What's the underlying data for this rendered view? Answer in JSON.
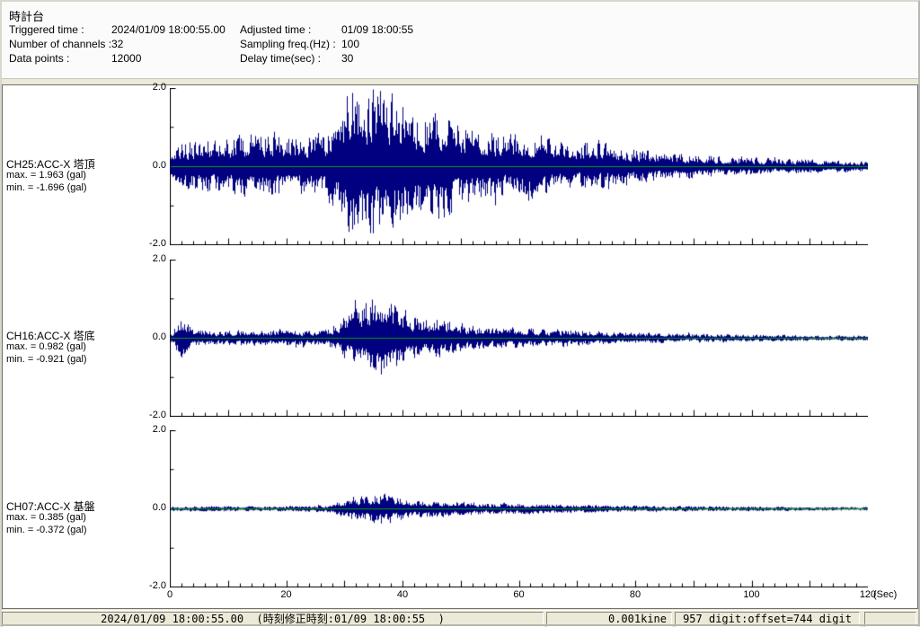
{
  "window": {
    "title": "時計台"
  },
  "header": {
    "fields": [
      {
        "label": "Triggered time :",
        "value": "2024/01/09 18:00:55.00"
      },
      {
        "label": "Adjusted time :",
        "value": "01/09 18:00:55"
      },
      {
        "label": "Number of channels :",
        "value": "32"
      },
      {
        "label": "Sampling freq.(Hz) :",
        "value": "100"
      },
      {
        "label": "Data points :",
        "value": "12000"
      },
      {
        "label": "Delay time(sec) :",
        "value": "30"
      }
    ]
  },
  "chart_data": {
    "type": "line",
    "title": "",
    "xlabel": "(Sec)",
    "ylabel": "(gal)",
    "x_range": [
      0,
      120
    ],
    "x_major_ticks": [
      0,
      20,
      40,
      60,
      80,
      100,
      120
    ],
    "x_major_labels": [
      "0",
      "20",
      "40",
      "60",
      "80",
      "100",
      "120"
    ],
    "x_minor_step": 2,
    "ylim": [
      -2.0,
      2.0
    ],
    "ytick_labels": [
      "2.0",
      "0.0",
      "-2.0"
    ],
    "grid": false,
    "trace_color": "#000080",
    "zero_line_color": "#0a9a0a",
    "axis_color": "#000000",
    "channels": [
      {
        "label": "CH25:ACC-X 塔頂",
        "max_label": "max. = 1.963 (gal)",
        "min_label": "min. = -1.696 (gal)",
        "max": 1.963,
        "min": -1.696,
        "seed": 1325,
        "envelope": [
          [
            0,
            0.25
          ],
          [
            1,
            0.45
          ],
          [
            3,
            0.55
          ],
          [
            6,
            0.6
          ],
          [
            10,
            0.65
          ],
          [
            14,
            0.7
          ],
          [
            18,
            0.72
          ],
          [
            22,
            0.65
          ],
          [
            26,
            0.7
          ],
          [
            29,
            1.0
          ],
          [
            31,
            1.9
          ],
          [
            33,
            1.55
          ],
          [
            35,
            1.85
          ],
          [
            37,
            1.6
          ],
          [
            40,
            1.3
          ],
          [
            43,
            1.1
          ],
          [
            46,
            1.35
          ],
          [
            48,
            1.2
          ],
          [
            50,
            1.0
          ],
          [
            53,
            0.9
          ],
          [
            56,
            0.75
          ],
          [
            60,
            0.65
          ],
          [
            63,
            0.8
          ],
          [
            66,
            0.55
          ],
          [
            70,
            0.5
          ],
          [
            73,
            0.6
          ],
          [
            76,
            0.45
          ],
          [
            80,
            0.38
          ],
          [
            85,
            0.3
          ],
          [
            90,
            0.28
          ],
          [
            95,
            0.22
          ],
          [
            100,
            0.2
          ],
          [
            105,
            0.17
          ],
          [
            110,
            0.16
          ],
          [
            115,
            0.13
          ],
          [
            120,
            0.12
          ]
        ]
      },
      {
        "label": "CH16:ACC-X 塔底",
        "max_label": "max. = 0.982 (gal)",
        "min_label": "min. = -0.921 (gal)",
        "max": 0.982,
        "min": -0.921,
        "seed": 7716,
        "envelope": [
          [
            0,
            0.1
          ],
          [
            1.5,
            0.45
          ],
          [
            2.5,
            0.5
          ],
          [
            4,
            0.2
          ],
          [
            8,
            0.17
          ],
          [
            12,
            0.2
          ],
          [
            16,
            0.18
          ],
          [
            20,
            0.2
          ],
          [
            24,
            0.18
          ],
          [
            27,
            0.2
          ],
          [
            29,
            0.45
          ],
          [
            31,
            0.6
          ],
          [
            33,
            0.75
          ],
          [
            35,
            0.95
          ],
          [
            37,
            1.0
          ],
          [
            39,
            0.8
          ],
          [
            41,
            0.6
          ],
          [
            44,
            0.45
          ],
          [
            47,
            0.5
          ],
          [
            50,
            0.35
          ],
          [
            53,
            0.3
          ],
          [
            56,
            0.25
          ],
          [
            60,
            0.28
          ],
          [
            64,
            0.2
          ],
          [
            68,
            0.22
          ],
          [
            72,
            0.18
          ],
          [
            76,
            0.15
          ],
          [
            80,
            0.13
          ],
          [
            85,
            0.12
          ],
          [
            90,
            0.1
          ],
          [
            95,
            0.1
          ],
          [
            100,
            0.08
          ],
          [
            105,
            0.08
          ],
          [
            110,
            0.07
          ],
          [
            115,
            0.07
          ],
          [
            120,
            0.06
          ]
        ]
      },
      {
        "label": "CH07:ACC-X 基盤",
        "max_label": "max. = 0.385 (gal)",
        "min_label": "min. = -0.372 (gal)",
        "max": 0.385,
        "min": -0.372,
        "seed": 4207,
        "envelope": [
          [
            0,
            0.05
          ],
          [
            5,
            0.06
          ],
          [
            10,
            0.06
          ],
          [
            15,
            0.05
          ],
          [
            20,
            0.06
          ],
          [
            25,
            0.07
          ],
          [
            28,
            0.1
          ],
          [
            30,
            0.2
          ],
          [
            32,
            0.28
          ],
          [
            34,
            0.3
          ],
          [
            36,
            0.38
          ],
          [
            38,
            0.32
          ],
          [
            40,
            0.25
          ],
          [
            43,
            0.2
          ],
          [
            46,
            0.18
          ],
          [
            49,
            0.15
          ],
          [
            52,
            0.14
          ],
          [
            55,
            0.12
          ],
          [
            60,
            0.13
          ],
          [
            65,
            0.1
          ],
          [
            70,
            0.09
          ],
          [
            75,
            0.08
          ],
          [
            80,
            0.07
          ],
          [
            85,
            0.06
          ],
          [
            90,
            0.06
          ],
          [
            95,
            0.05
          ],
          [
            100,
            0.05
          ],
          [
            105,
            0.05
          ],
          [
            110,
            0.04
          ],
          [
            115,
            0.04
          ],
          [
            120,
            0.04
          ]
        ]
      }
    ]
  },
  "statusbar": {
    "cells": [
      "2024/01/09 18:00:55.00  (時刻修正時刻:01/09 18:00:55  )",
      "0.001kine",
      "957 digit:offset=744 digit",
      ""
    ]
  }
}
